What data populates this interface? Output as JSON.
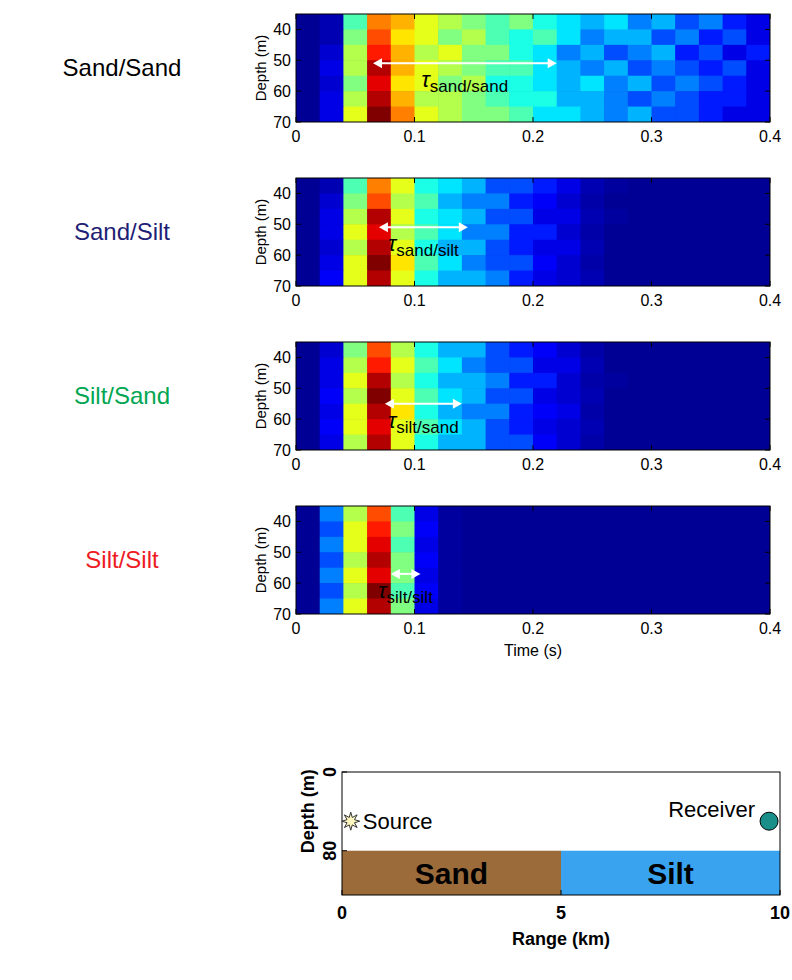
{
  "chart_data": [
    {
      "type": "heatmap",
      "title": "Sand/Sand",
      "color": "#000000",
      "ylabel": "Depth (m)",
      "xlim": [
        0,
        0.4
      ],
      "xticks": [
        0,
        0.1,
        0.2,
        0.3,
        0.4
      ],
      "ylim": [
        70,
        35
      ],
      "yticks": [
        40,
        50,
        60,
        70
      ],
      "x_bins": [
        0,
        0.02,
        0.04,
        0.06,
        0.08,
        0.1,
        0.12,
        0.14,
        0.16,
        0.18,
        0.2,
        0.22,
        0.24,
        0.26,
        0.28,
        0.3,
        0.32,
        0.34,
        0.36,
        0.38,
        0.4
      ],
      "y_bins": [
        35,
        40,
        45,
        50,
        55,
        60,
        65,
        70
      ],
      "color_range": [
        0,
        1
      ],
      "cells": [
        [
          0.02,
          0.05,
          0.45,
          0.75,
          0.7,
          0.6,
          0.55,
          0.5,
          0.45,
          0.5,
          0.4,
          0.35,
          0.3,
          0.35,
          0.25,
          0.3,
          0.2,
          0.25,
          0.15,
          0.1
        ],
        [
          0.02,
          0.05,
          0.5,
          0.8,
          0.65,
          0.6,
          0.5,
          0.55,
          0.45,
          0.4,
          0.45,
          0.35,
          0.25,
          0.3,
          0.3,
          0.2,
          0.25,
          0.15,
          0.2,
          0.1
        ],
        [
          0.02,
          0.08,
          0.55,
          0.85,
          0.7,
          0.55,
          0.6,
          0.5,
          0.5,
          0.4,
          0.35,
          0.25,
          0.3,
          0.2,
          0.25,
          0.3,
          0.15,
          0.2,
          0.1,
          0.15
        ],
        [
          0.02,
          0.1,
          0.55,
          0.95,
          0.7,
          0.6,
          0.55,
          0.5,
          0.45,
          0.45,
          0.35,
          0.3,
          0.25,
          0.3,
          0.2,
          0.25,
          0.2,
          0.15,
          0.2,
          0.1
        ],
        [
          0.02,
          0.08,
          0.5,
          0.9,
          0.65,
          0.6,
          0.5,
          0.55,
          0.4,
          0.4,
          0.35,
          0.3,
          0.35,
          0.25,
          0.3,
          0.2,
          0.25,
          0.2,
          0.15,
          0.1
        ],
        [
          0.02,
          0.1,
          0.55,
          0.95,
          0.7,
          0.55,
          0.55,
          0.5,
          0.45,
          0.4,
          0.4,
          0.3,
          0.3,
          0.25,
          0.2,
          0.25,
          0.2,
          0.15,
          0.15,
          0.1
        ],
        [
          0.02,
          0.1,
          0.6,
          1.0,
          0.75,
          0.6,
          0.55,
          0.5,
          0.5,
          0.45,
          0.35,
          0.35,
          0.3,
          0.25,
          0.3,
          0.2,
          0.2,
          0.15,
          0.1,
          0.1
        ]
      ],
      "annotations": [
        {
          "text": "τ",
          "subscript": "sand/sand",
          "x_start": 0.065,
          "x_end": 0.22,
          "y": 51
        }
      ]
    },
    {
      "type": "heatmap",
      "title": "Sand/Silt",
      "color": "#1f1f75",
      "ylabel": "Depth (m)",
      "xlim": [
        0,
        0.4
      ],
      "xticks": [
        0,
        0.1,
        0.2,
        0.3,
        0.4
      ],
      "ylim": [
        70,
        35
      ],
      "yticks": [
        40,
        50,
        60,
        70
      ],
      "x_bins": [
        0,
        0.02,
        0.04,
        0.06,
        0.08,
        0.1,
        0.12,
        0.14,
        0.16,
        0.18,
        0.2,
        0.22,
        0.24,
        0.26,
        0.28,
        0.3,
        0.32,
        0.34,
        0.36,
        0.38,
        0.4
      ],
      "y_bins": [
        35,
        40,
        45,
        50,
        55,
        60,
        65,
        70
      ],
      "color_range": [
        0,
        1
      ],
      "cells": [
        [
          0.02,
          0.05,
          0.45,
          0.75,
          0.6,
          0.4,
          0.35,
          0.3,
          0.2,
          0.2,
          0.15,
          0.1,
          0.05,
          0.03,
          0.02,
          0.02,
          0.02,
          0.02,
          0.02,
          0.02
        ],
        [
          0.02,
          0.08,
          0.5,
          0.8,
          0.55,
          0.45,
          0.3,
          0.25,
          0.25,
          0.15,
          0.12,
          0.08,
          0.04,
          0.02,
          0.02,
          0.02,
          0.02,
          0.02,
          0.02,
          0.02
        ],
        [
          0.02,
          0.1,
          0.55,
          0.95,
          0.6,
          0.4,
          0.35,
          0.3,
          0.2,
          0.2,
          0.1,
          0.1,
          0.05,
          0.03,
          0.02,
          0.02,
          0.02,
          0.02,
          0.02,
          0.02
        ],
        [
          0.02,
          0.1,
          0.6,
          0.9,
          0.55,
          0.45,
          0.35,
          0.25,
          0.25,
          0.15,
          0.15,
          0.08,
          0.04,
          0.02,
          0.02,
          0.02,
          0.02,
          0.02,
          0.02,
          0.02
        ],
        [
          0.02,
          0.08,
          0.55,
          0.95,
          0.6,
          0.4,
          0.3,
          0.3,
          0.2,
          0.15,
          0.1,
          0.1,
          0.05,
          0.02,
          0.02,
          0.02,
          0.02,
          0.02,
          0.02,
          0.02
        ],
        [
          0.02,
          0.1,
          0.6,
          1.0,
          0.65,
          0.45,
          0.35,
          0.25,
          0.2,
          0.2,
          0.12,
          0.08,
          0.04,
          0.02,
          0.02,
          0.02,
          0.02,
          0.02,
          0.02,
          0.02
        ],
        [
          0.02,
          0.12,
          0.6,
          0.95,
          0.6,
          0.4,
          0.3,
          0.3,
          0.25,
          0.15,
          0.1,
          0.08,
          0.05,
          0.02,
          0.02,
          0.02,
          0.02,
          0.02,
          0.02,
          0.02
        ]
      ],
      "annotations": [
        {
          "text": "τ",
          "subscript": "sand/silt",
          "x_start": 0.07,
          "x_end": 0.145,
          "y": 51
        }
      ]
    },
    {
      "type": "heatmap",
      "title": "Silt/Sand",
      "color": "#00a651",
      "ylabel": "Depth (m)",
      "xlim": [
        0,
        0.4
      ],
      "xticks": [
        0,
        0.1,
        0.2,
        0.3,
        0.4
      ],
      "ylim": [
        70,
        35
      ],
      "yticks": [
        40,
        50,
        60,
        70
      ],
      "x_bins": [
        0,
        0.02,
        0.04,
        0.06,
        0.08,
        0.1,
        0.12,
        0.14,
        0.16,
        0.18,
        0.2,
        0.22,
        0.24,
        0.26,
        0.28,
        0.3,
        0.32,
        0.34,
        0.36,
        0.38,
        0.4
      ],
      "y_bins": [
        35,
        40,
        45,
        50,
        55,
        60,
        65,
        70
      ],
      "color_range": [
        0,
        1
      ],
      "cells": [
        [
          0.02,
          0.08,
          0.5,
          0.8,
          0.55,
          0.4,
          0.3,
          0.3,
          0.2,
          0.15,
          0.12,
          0.08,
          0.04,
          0.02,
          0.02,
          0.02,
          0.02,
          0.02,
          0.02,
          0.02
        ],
        [
          0.02,
          0.1,
          0.55,
          0.85,
          0.6,
          0.45,
          0.35,
          0.25,
          0.2,
          0.2,
          0.1,
          0.1,
          0.05,
          0.02,
          0.02,
          0.02,
          0.02,
          0.02,
          0.02,
          0.02
        ],
        [
          0.02,
          0.1,
          0.6,
          0.95,
          0.55,
          0.4,
          0.3,
          0.3,
          0.25,
          0.15,
          0.15,
          0.08,
          0.04,
          0.03,
          0.02,
          0.02,
          0.02,
          0.02,
          0.02,
          0.02
        ],
        [
          0.02,
          0.12,
          0.55,
          1.0,
          0.6,
          0.45,
          0.35,
          0.3,
          0.2,
          0.2,
          0.1,
          0.08,
          0.05,
          0.02,
          0.02,
          0.02,
          0.02,
          0.02,
          0.02,
          0.02
        ],
        [
          0.02,
          0.1,
          0.6,
          0.95,
          0.65,
          0.4,
          0.3,
          0.25,
          0.25,
          0.15,
          0.12,
          0.1,
          0.04,
          0.02,
          0.02,
          0.02,
          0.02,
          0.02,
          0.02,
          0.02
        ],
        [
          0.02,
          0.12,
          0.6,
          0.9,
          0.6,
          0.45,
          0.35,
          0.3,
          0.2,
          0.15,
          0.1,
          0.08,
          0.05,
          0.02,
          0.02,
          0.02,
          0.02,
          0.02,
          0.02,
          0.02
        ],
        [
          0.02,
          0.1,
          0.55,
          0.95,
          0.6,
          0.4,
          0.3,
          0.3,
          0.2,
          0.2,
          0.12,
          0.08,
          0.04,
          0.02,
          0.02,
          0.02,
          0.02,
          0.02,
          0.02,
          0.02
        ]
      ],
      "annotations": [
        {
          "text": "τ",
          "subscript": "silt/sand",
          "x_start": 0.075,
          "x_end": 0.14,
          "y": 55
        }
      ]
    },
    {
      "type": "heatmap",
      "title": "Silt/Silt",
      "color": "#ed1c24",
      "ylabel": "Depth (m)",
      "xlabel": "Time (s)",
      "xlim": [
        0,
        0.4
      ],
      "xticks": [
        0,
        0.1,
        0.2,
        0.3,
        0.4
      ],
      "ylim": [
        70,
        35
      ],
      "yticks": [
        40,
        50,
        60,
        70
      ],
      "x_bins": [
        0,
        0.02,
        0.04,
        0.06,
        0.08,
        0.1,
        0.12,
        0.14,
        0.16,
        0.18,
        0.2,
        0.22,
        0.24,
        0.26,
        0.28,
        0.3,
        0.32,
        0.34,
        0.36,
        0.38,
        0.4
      ],
      "y_bins": [
        35,
        40,
        45,
        50,
        55,
        60,
        65,
        70
      ],
      "color_range": [
        0,
        1
      ],
      "cells": [
        [
          0.02,
          0.25,
          0.55,
          0.8,
          0.45,
          0.1,
          0.03,
          0.02,
          0.02,
          0.02,
          0.02,
          0.02,
          0.02,
          0.02,
          0.02,
          0.02,
          0.02,
          0.02,
          0.02,
          0.02
        ],
        [
          0.02,
          0.2,
          0.6,
          0.85,
          0.5,
          0.12,
          0.03,
          0.02,
          0.02,
          0.02,
          0.02,
          0.02,
          0.02,
          0.02,
          0.02,
          0.02,
          0.02,
          0.02,
          0.02,
          0.02
        ],
        [
          0.02,
          0.25,
          0.6,
          0.9,
          0.45,
          0.1,
          0.03,
          0.02,
          0.02,
          0.02,
          0.02,
          0.02,
          0.02,
          0.02,
          0.02,
          0.02,
          0.02,
          0.02,
          0.02,
          0.02
        ],
        [
          0.02,
          0.2,
          0.55,
          0.95,
          0.5,
          0.12,
          0.03,
          0.02,
          0.02,
          0.02,
          0.02,
          0.02,
          0.02,
          0.02,
          0.02,
          0.02,
          0.02,
          0.02,
          0.02,
          0.02
        ],
        [
          0.02,
          0.25,
          0.6,
          0.9,
          0.5,
          0.1,
          0.03,
          0.02,
          0.02,
          0.02,
          0.02,
          0.02,
          0.02,
          0.02,
          0.02,
          0.02,
          0.02,
          0.02,
          0.02,
          0.02
        ],
        [
          0.02,
          0.2,
          0.55,
          1.0,
          0.45,
          0.12,
          0.03,
          0.02,
          0.02,
          0.02,
          0.02,
          0.02,
          0.02,
          0.02,
          0.02,
          0.02,
          0.02,
          0.02,
          0.02,
          0.02
        ],
        [
          0.02,
          0.25,
          0.6,
          0.95,
          0.5,
          0.1,
          0.03,
          0.02,
          0.02,
          0.02,
          0.02,
          0.02,
          0.02,
          0.02,
          0.02,
          0.02,
          0.02,
          0.02,
          0.02,
          0.02
        ]
      ],
      "annotations": [
        {
          "text": "τ",
          "subscript": "silt/silt",
          "x_start": 0.08,
          "x_end": 0.105,
          "y": 57
        }
      ]
    }
  ],
  "diagram": {
    "xlabel": "Range (km)",
    "ylabel": "Depth (m)",
    "xlim": [
      0,
      10
    ],
    "xticks": [
      0,
      5,
      10
    ],
    "ylim": [
      125,
      0
    ],
    "yticks": [
      0,
      80
    ],
    "layers": [
      {
        "label": "Sand",
        "color": "#9b6b3a",
        "x_start": 0,
        "x_end": 5,
        "y_start": 80,
        "y_end": 125
      },
      {
        "label": "Silt",
        "color": "#3aa3f0",
        "x_start": 5,
        "x_end": 10,
        "y_start": 80,
        "y_end": 125
      }
    ],
    "source": {
      "label": "Source",
      "x": 0.2,
      "y": 50
    },
    "receiver": {
      "label": "Receiver",
      "x": 9.75,
      "y": 50
    }
  }
}
